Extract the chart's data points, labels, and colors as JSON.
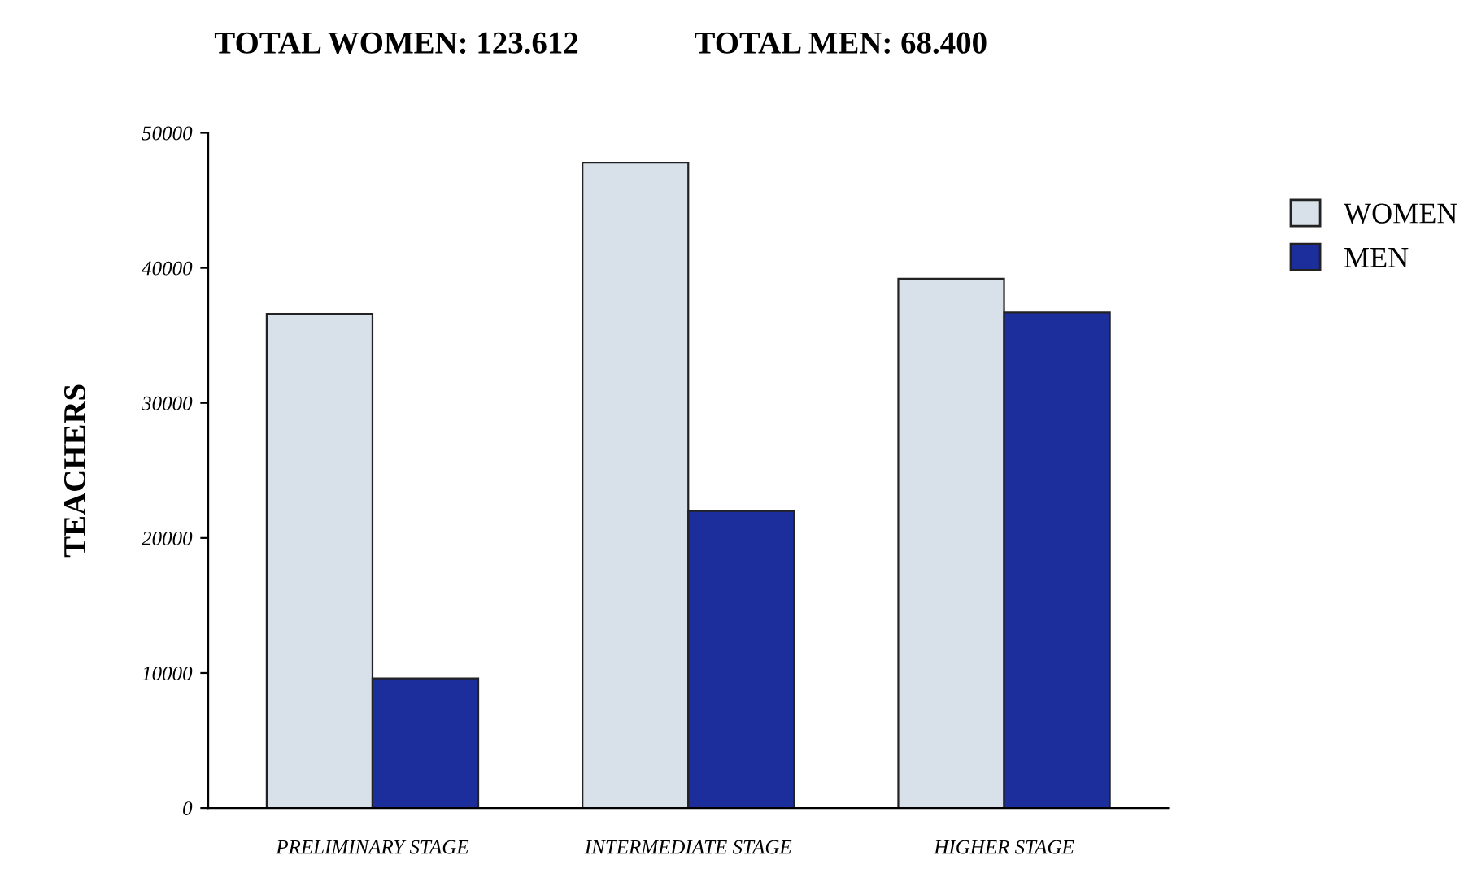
{
  "chart_data": {
    "type": "bar",
    "title": "TOTAL WOMEN: 123.612",
    "subtitle": "TOTAL MEN: 68.400",
    "ylabel": "TEACHERS",
    "categories": [
      "PRELIMINARY STAGE",
      "INTERMEDIATE STAGE",
      "HIGHER STAGE"
    ],
    "series": [
      {
        "name": "WOMEN",
        "color": "#d8e0ea",
        "values": [
          36600,
          47800,
          39200
        ]
      },
      {
        "name": "MEN",
        "color": "#1c2e9c",
        "values": [
          9600,
          22000,
          36700
        ]
      }
    ],
    "ylim": [
      0,
      50000
    ],
    "yticks": [
      0,
      10000,
      20000,
      30000,
      40000,
      50000
    ],
    "grid": false,
    "legend": "right"
  }
}
